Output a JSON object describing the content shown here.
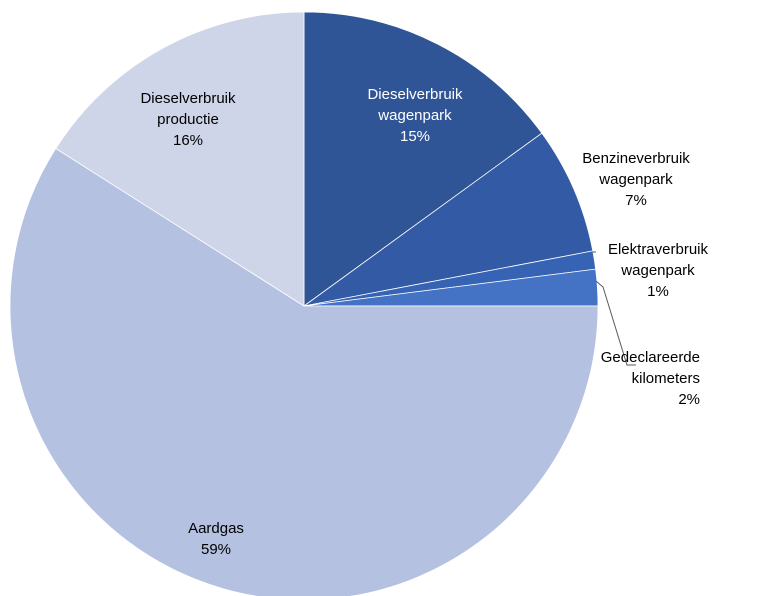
{
  "chart_data": {
    "type": "pie",
    "title": "",
    "slices": [
      {
        "category": "Dieselverbruik wagenpark",
        "label_lines": [
          "Dieselverbruik",
          "wagenpark"
        ],
        "value": 15,
        "value_label": "15%",
        "color": "#2f5597",
        "label_color": "#ffffff",
        "label_position": "inside"
      },
      {
        "category": "Benzineverbruik wagenpark",
        "label_lines": [
          "Benzineverbruik",
          "wagenpark"
        ],
        "value": 7,
        "value_label": "7%",
        "color": "#335aa5",
        "label_color": "#000000",
        "label_position": "outside"
      },
      {
        "category": "Elektraverbruik wagenpark",
        "label_lines": [
          "Elektraverbruik",
          "wagenpark"
        ],
        "value": 1,
        "value_label": "1%",
        "color": "#3763b4",
        "label_color": "#000000",
        "label_position": "outside"
      },
      {
        "category": "Gedeclareerde kilometers",
        "label_lines": [
          "Gedeclareerde",
          "kilometers"
        ],
        "value": 2,
        "value_label": "2%",
        "color": "#4472c4",
        "label_color": "#000000",
        "label_position": "outside"
      },
      {
        "category": "Aardgas",
        "label_lines": [
          "Aardgas"
        ],
        "value": 59,
        "value_label": "59%",
        "color": "#b4c1e1",
        "label_color": "#000000",
        "label_position": "inside"
      },
      {
        "category": "Dieselverbruik productie",
        "label_lines": [
          "Dieselverbruik",
          "productie"
        ],
        "value": 16,
        "value_label": "16%",
        "color": "#ced5e9",
        "label_color": "#000000",
        "label_position": "inside"
      }
    ],
    "legend": "none",
    "start_angle": "12 o'clock",
    "direction": "clockwise"
  }
}
